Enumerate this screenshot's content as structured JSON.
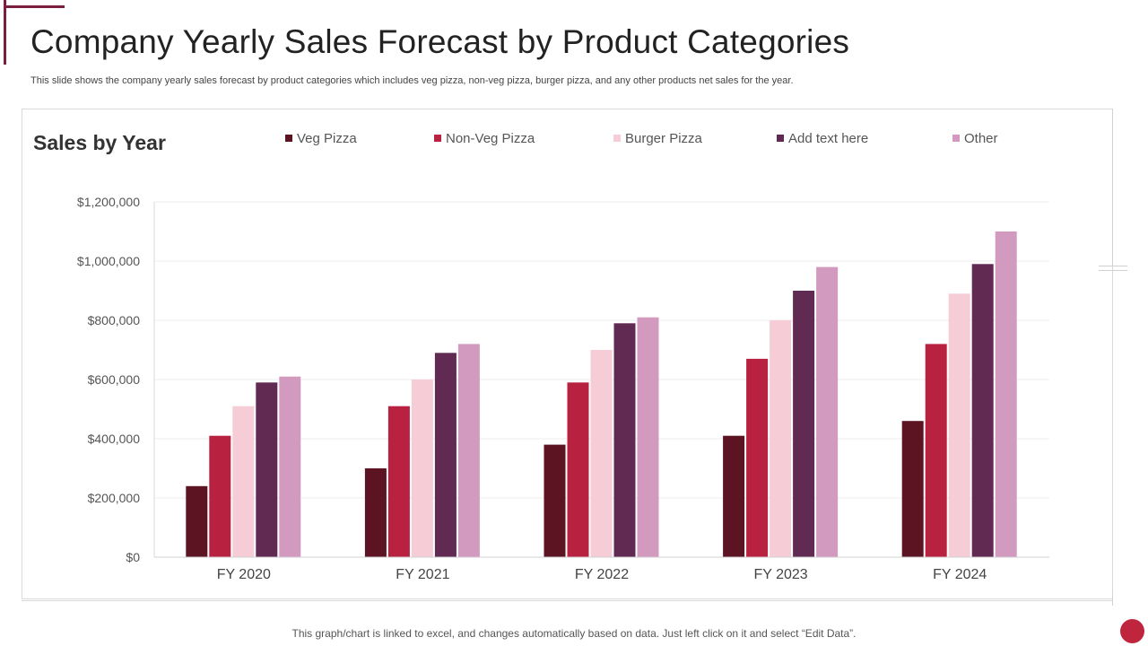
{
  "slide": {
    "title": "Company Yearly Sales Forecast by Product Categories",
    "subtitle": "This slide shows the company yearly  sales forecast by product categories which includes veg pizza,  non-veg pizza,  burger pizza,  and any  other products net sales for the year.",
    "footer": "This graph/chart is linked to excel,  and changes automatically based on data. Just left click on it and select “Edit Data”.",
    "accent_color": "#7a1f3d",
    "button_color": "#c0253e"
  },
  "chart_data": {
    "type": "bar",
    "title": "Sales by Year",
    "xlabel": "",
    "ylabel": "",
    "categories": [
      "FY 2020",
      "FY 2021",
      "FY 2022",
      "FY 2023",
      "FY 2024"
    ],
    "series": [
      {
        "name": "Veg Pizza",
        "color": "#5c1322",
        "values": [
          240000,
          300000,
          380000,
          410000,
          460000
        ]
      },
      {
        "name": "Non-Veg Pizza",
        "color": "#b82240",
        "values": [
          410000,
          510000,
          590000,
          670000,
          720000
        ]
      },
      {
        "name": "Burger Pizza",
        "color": "#f6cdd6",
        "values": [
          510000,
          600000,
          700000,
          800000,
          890000
        ]
      },
      {
        "name": "Add text here",
        "color": "#602a52",
        "values": [
          590000,
          690000,
          790000,
          900000,
          990000
        ]
      },
      {
        "name": "Other",
        "color": "#d39ac0",
        "values": [
          610000,
          720000,
          810000,
          980000,
          1100000
        ]
      }
    ],
    "ylim": [
      0,
      1200000
    ],
    "yticks": [
      0,
      200000,
      400000,
      600000,
      800000,
      1000000,
      1200000
    ],
    "ytick_labels": [
      "$0",
      "$200,000",
      "$400,000",
      "$600,000",
      "$800,000",
      "$1,000,000",
      "$1,200,000"
    ],
    "grid": true,
    "legend_position": "top"
  }
}
